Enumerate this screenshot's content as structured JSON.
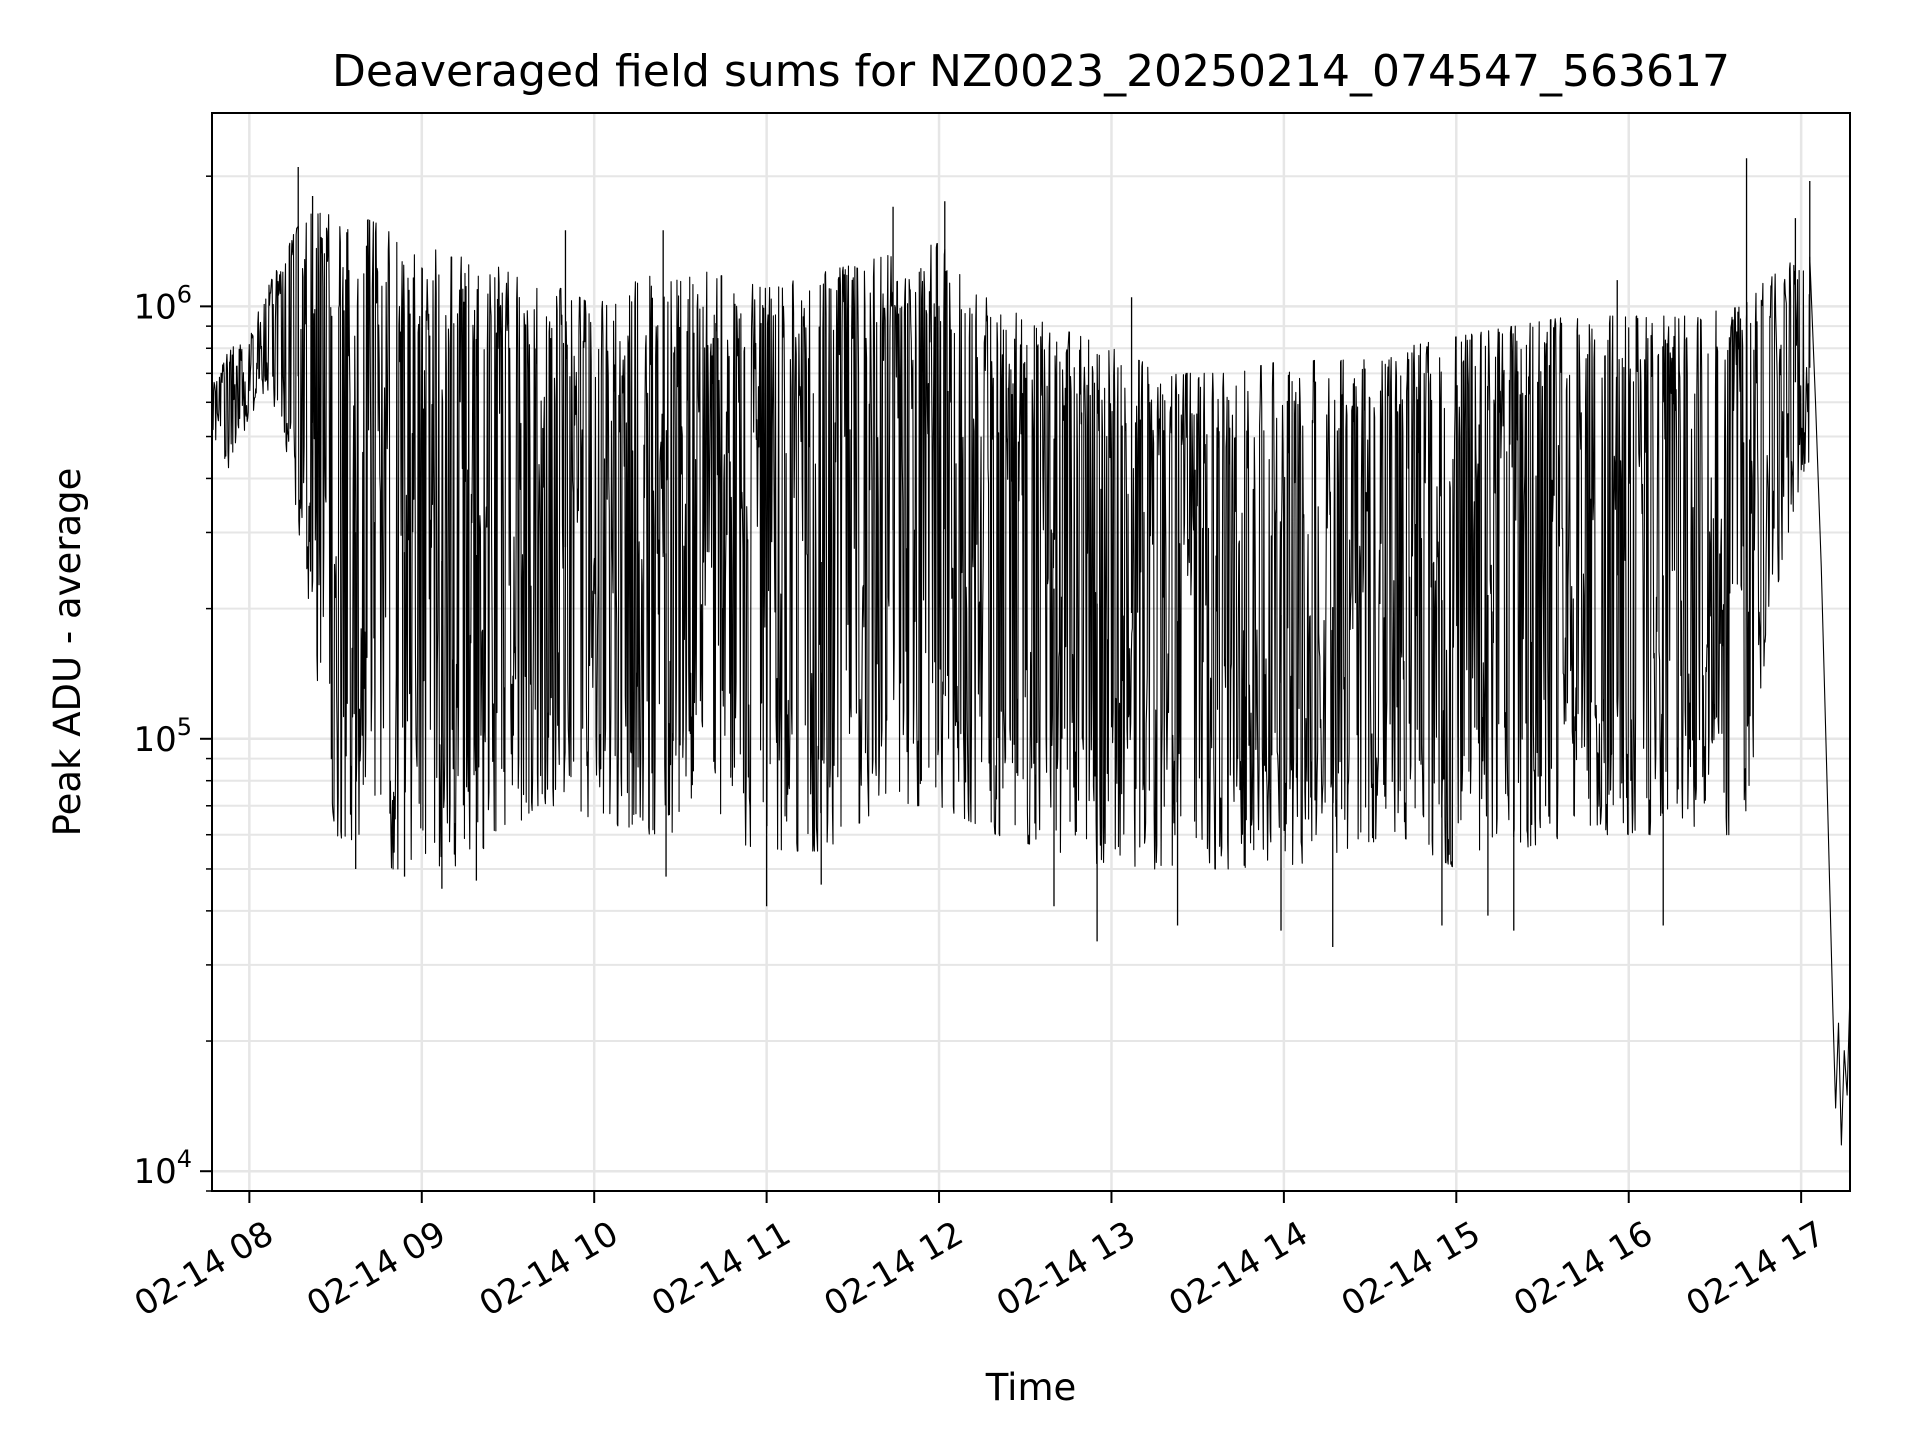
{
  "chart_data": {
    "type": "line",
    "title": "Deaveraged field sums for NZ0023_20250214_074547_563617",
    "xlabel": "Time",
    "ylabel": "Peak ADU - average",
    "y_scale": "log",
    "y_range": [
      9000,
      2800000
    ],
    "x_range": [
      "2025-02-14 07:47",
      "2025-02-14 17:17"
    ],
    "grid": true,
    "line_color": "#000000",
    "grid_color": "#e6e6e6",
    "x_ticks": [
      {
        "value": "2025-02-14 08:00",
        "label": "02-14 08"
      },
      {
        "value": "2025-02-14 09:00",
        "label": "02-14 09"
      },
      {
        "value": "2025-02-14 10:00",
        "label": "02-14 10"
      },
      {
        "value": "2025-02-14 11:00",
        "label": "02-14 11"
      },
      {
        "value": "2025-02-14 12:00",
        "label": "02-14 12"
      },
      {
        "value": "2025-02-14 13:00",
        "label": "02-14 13"
      },
      {
        "value": "2025-02-14 14:00",
        "label": "02-14 14"
      },
      {
        "value": "2025-02-14 15:00",
        "label": "02-14 15"
      },
      {
        "value": "2025-02-14 16:00",
        "label": "02-14 16"
      },
      {
        "value": "2025-02-14 17:00",
        "label": "02-14 17"
      }
    ],
    "y_ticks": [
      {
        "value": 10000,
        "base": "10",
        "exp": "4"
      },
      {
        "value": 100000,
        "base": "10",
        "exp": "5"
      },
      {
        "value": 1000000,
        "base": "10",
        "exp": "6"
      }
    ],
    "envelope": [
      {
        "x": "2025-02-14 07:47",
        "low": 500000,
        "high": 650000
      },
      {
        "x": "2025-02-14 07:53",
        "low": 420000,
        "high": 800000
      },
      {
        "x": "2025-02-14 08:00",
        "low": 550000,
        "high": 850000
      },
      {
        "x": "2025-02-14 08:06",
        "low": 650000,
        "high": 1100000
      },
      {
        "x": "2025-02-14 08:12",
        "low": 500000,
        "high": 1300000
      },
      {
        "x": "2025-02-14 08:16",
        "low": 350000,
        "high": 1500000
      },
      {
        "x": "2025-02-14 08:22",
        "low": 170000,
        "high": 1700000
      },
      {
        "x": "2025-02-14 08:30",
        "low": 60000,
        "high": 1600000
      },
      {
        "x": "2025-02-14 08:40",
        "low": 55000,
        "high": 1600000
      },
      {
        "x": "2025-02-14 08:50",
        "low": 50000,
        "high": 1500000
      },
      {
        "x": "2025-02-14 09:00",
        "low": 50000,
        "high": 1400000
      },
      {
        "x": "2025-02-14 09:10",
        "low": 50000,
        "high": 1300000
      },
      {
        "x": "2025-02-14 09:20",
        "low": 55000,
        "high": 1300000
      },
      {
        "x": "2025-02-14 09:30",
        "low": 60000,
        "high": 1200000
      },
      {
        "x": "2025-02-14 09:40",
        "low": 70000,
        "high": 1100000
      },
      {
        "x": "2025-02-14 09:50",
        "low": 70000,
        "high": 1100000
      },
      {
        "x": "2025-02-14 10:00",
        "low": 65000,
        "high": 1000000
      },
      {
        "x": "2025-02-14 10:20",
        "low": 60000,
        "high": 1200000
      },
      {
        "x": "2025-02-14 10:40",
        "low": 60000,
        "high": 1200000
      },
      {
        "x": "2025-02-14 11:00",
        "low": 55000,
        "high": 1100000
      },
      {
        "x": "2025-02-14 11:20",
        "low": 55000,
        "high": 1200000
      },
      {
        "x": "2025-02-14 11:40",
        "low": 70000,
        "high": 1300000
      },
      {
        "x": "2025-02-14 12:00",
        "low": 70000,
        "high": 1400000
      },
      {
        "x": "2025-02-14 12:20",
        "low": 60000,
        "high": 1000000
      },
      {
        "x": "2025-02-14 12:40",
        "low": 55000,
        "high": 900000
      },
      {
        "x": "2025-02-14 13:00",
        "low": 50000,
        "high": 800000
      },
      {
        "x": "2025-02-14 13:20",
        "low": 50000,
        "high": 700000
      },
      {
        "x": "2025-02-14 13:40",
        "low": 50000,
        "high": 700000
      },
      {
        "x": "2025-02-14 14:00",
        "low": 50000,
        "high": 750000
      },
      {
        "x": "2025-02-14 14:20",
        "low": 55000,
        "high": 750000
      },
      {
        "x": "2025-02-14 14:40",
        "low": 60000,
        "high": 800000
      },
      {
        "x": "2025-02-14 15:00",
        "low": 50000,
        "high": 850000
      },
      {
        "x": "2025-02-14 15:20",
        "low": 55000,
        "high": 900000
      },
      {
        "x": "2025-02-14 15:40",
        "low": 60000,
        "high": 950000
      },
      {
        "x": "2025-02-14 16:00",
        "low": 60000,
        "high": 950000
      },
      {
        "x": "2025-02-14 16:20",
        "low": 60000,
        "high": 950000
      },
      {
        "x": "2025-02-14 16:40",
        "low": 60000,
        "high": 1000000
      },
      {
        "x": "2025-02-14 16:50",
        "low": 200000,
        "high": 1200000
      },
      {
        "x": "2025-02-14 17:00",
        "low": 400000,
        "high": 1300000
      }
    ],
    "spikes_high": [
      {
        "x": "2025-02-14 08:17",
        "y": 2100000
      },
      {
        "x": "2025-02-14 08:22",
        "y": 1800000
      },
      {
        "x": "2025-02-14 09:50",
        "y": 1500000
      },
      {
        "x": "2025-02-14 10:24",
        "y": 1500000
      },
      {
        "x": "2025-02-14 11:44",
        "y": 1700000
      },
      {
        "x": "2025-02-14 12:02",
        "y": 1750000
      },
      {
        "x": "2025-02-14 13:07",
        "y": 1050000
      },
      {
        "x": "2025-02-14 15:56",
        "y": 1150000
      },
      {
        "x": "2025-02-14 16:41",
        "y": 2200000
      },
      {
        "x": "2025-02-14 16:58",
        "y": 1600000
      },
      {
        "x": "2025-02-14 17:03",
        "y": 1950000
      }
    ],
    "spikes_low": [
      {
        "x": "2025-02-14 08:37",
        "y": 50000
      },
      {
        "x": "2025-02-14 08:54",
        "y": 48000
      },
      {
        "x": "2025-02-14 09:07",
        "y": 45000
      },
      {
        "x": "2025-02-14 09:19",
        "y": 47000
      },
      {
        "x": "2025-02-14 10:25",
        "y": 48000
      },
      {
        "x": "2025-02-14 11:00",
        "y": 41000
      },
      {
        "x": "2025-02-14 11:19",
        "y": 46000
      },
      {
        "x": "2025-02-14 12:40",
        "y": 41000
      },
      {
        "x": "2025-02-14 12:55",
        "y": 34000
      },
      {
        "x": "2025-02-14 13:23",
        "y": 37000
      },
      {
        "x": "2025-02-14 13:59",
        "y": 36000
      },
      {
        "x": "2025-02-14 14:17",
        "y": 33000
      },
      {
        "x": "2025-02-14 14:55",
        "y": 37000
      },
      {
        "x": "2025-02-14 15:11",
        "y": 39000
      },
      {
        "x": "2025-02-14 15:20",
        "y": 36000
      },
      {
        "x": "2025-02-14 16:12",
        "y": 37000
      }
    ],
    "tail": [
      {
        "x": "2025-02-14 17:03",
        "y": 1300000
      },
      {
        "x": "2025-02-14 17:05",
        "y": 600000
      },
      {
        "x": "2025-02-14 17:07",
        "y": 250000
      },
      {
        "x": "2025-02-14 17:09",
        "y": 80000
      },
      {
        "x": "2025-02-14 17:11",
        "y": 24000
      },
      {
        "x": "2025-02-14 17:12",
        "y": 14000
      },
      {
        "x": "2025-02-14 17:13",
        "y": 22000
      },
      {
        "x": "2025-02-14 17:14",
        "y": 11500
      },
      {
        "x": "2025-02-14 17:15",
        "y": 19000
      },
      {
        "x": "2025-02-14 17:16",
        "y": 15000
      },
      {
        "x": "2025-02-14 17:17",
        "y": 26000
      }
    ]
  }
}
